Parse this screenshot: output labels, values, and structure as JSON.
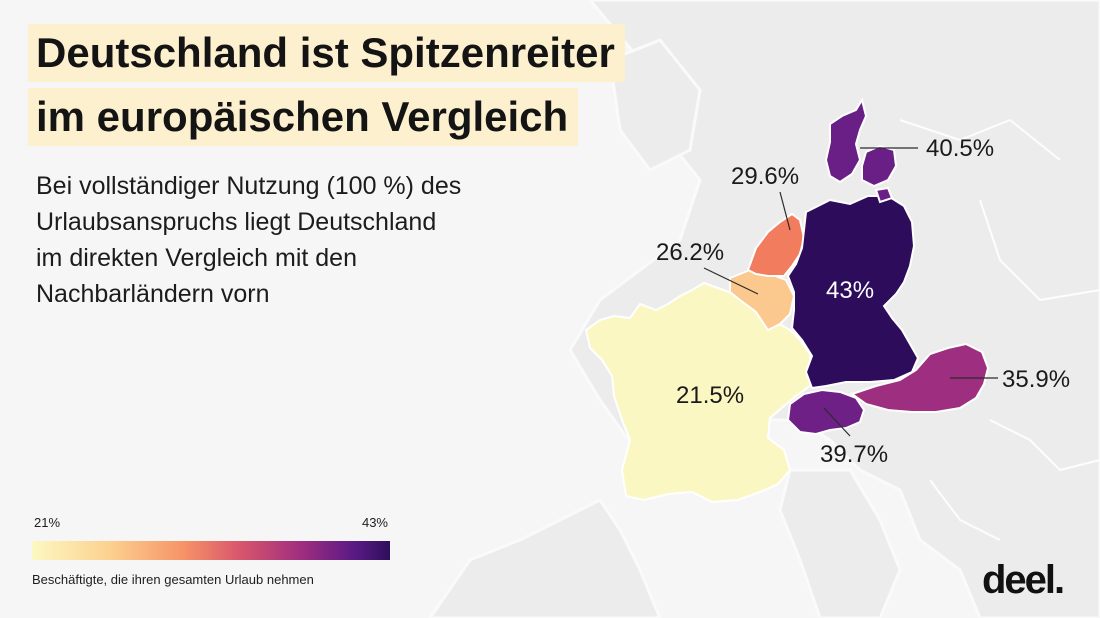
{
  "header": {
    "title_lines": [
      "Deutschland ist Spitzenreiter",
      "im europäischen Vergleich"
    ],
    "subtitle_lines": [
      "Bei vollständiger Nutzung (100 %) des",
      "Urlaubsanspruchs liegt Deutschland",
      "im direkten Vergleich mit den",
      "Nachbarländern vorn"
    ]
  },
  "map": {
    "regions": [
      {
        "id": "denmark",
        "label": "40.5%",
        "value": 40.5,
        "color": "#6a1f86"
      },
      {
        "id": "netherlands",
        "label": "29.6%",
        "value": 29.6,
        "color": "#f27c5e"
      },
      {
        "id": "belgium",
        "label": "26.2%",
        "value": 26.2,
        "color": "#fbc88e"
      },
      {
        "id": "germany",
        "label": "43%",
        "value": 43,
        "color": "#2d0c5c"
      },
      {
        "id": "austria",
        "label": "35.9%",
        "value": 35.9,
        "color": "#9e2f80"
      },
      {
        "id": "switzerland",
        "label": "39.7%",
        "value": 39.7,
        "color": "#6e2087"
      },
      {
        "id": "france",
        "label": "21.5%",
        "value": 21.5,
        "color": "#fbf7c3"
      }
    ],
    "scale_colors": [
      "#fcf8c2",
      "#fcd08f",
      "#f69468",
      "#d9566c",
      "#9c2c7f",
      "#5a1a85",
      "#2e0f5c"
    ]
  },
  "legend": {
    "min_label": "21%",
    "max_label": "43%",
    "caption": "Beschäftigte, die ihren gesamten Urlaub nehmen"
  },
  "brand": {
    "logo_text": "deel."
  }
}
